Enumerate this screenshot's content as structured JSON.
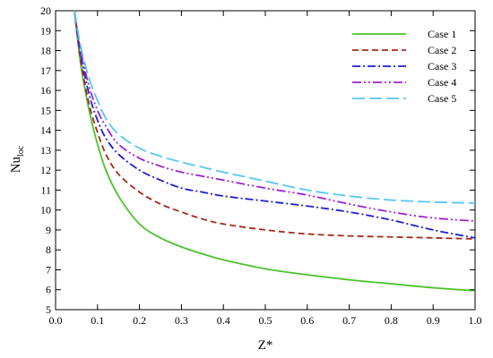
{
  "chart_data": {
    "type": "line",
    "xlabel": "Z*",
    "ylabel_main": "Nu",
    "ylabel_sub": "loc",
    "xlim": [
      0.0,
      1.0
    ],
    "ylim": [
      5,
      20
    ],
    "xticks": [
      0.0,
      0.1,
      0.2,
      0.3,
      0.4,
      0.5,
      0.6,
      0.7,
      0.8,
      0.9,
      1.0
    ],
    "xtick_labels": [
      "0.0",
      "0.1",
      "0.2",
      "0.3",
      "0.4",
      "0.5",
      "0.6",
      "0.7",
      "0.8",
      "0.9",
      "1.0"
    ],
    "yticks": [
      5,
      6,
      7,
      8,
      9,
      10,
      11,
      12,
      13,
      14,
      15,
      16,
      17,
      18,
      19,
      20
    ],
    "ytick_labels": [
      "5",
      "6",
      "7",
      "8",
      "9",
      "10",
      "11",
      "12",
      "13",
      "14",
      "15",
      "16",
      "17",
      "18",
      "19",
      "20"
    ],
    "grid": false,
    "legend_position": "top-right",
    "series": [
      {
        "name": "Case 1",
        "color": "#4CC22D",
        "dash": "solid",
        "x": [
          0.045,
          0.06,
          0.08,
          0.1,
          0.12,
          0.15,
          0.2,
          0.25,
          0.3,
          0.35,
          0.4,
          0.5,
          0.6,
          0.7,
          0.8,
          0.9,
          1.0
        ],
        "y": [
          20.0,
          17.3,
          15.0,
          13.3,
          12.0,
          10.7,
          9.3,
          8.6,
          8.15,
          7.8,
          7.5,
          7.05,
          6.75,
          6.5,
          6.3,
          6.1,
          5.95
        ]
      },
      {
        "name": "Case 2",
        "color": "#A52A1A",
        "dash": "dashed",
        "x": [
          0.045,
          0.06,
          0.08,
          0.1,
          0.12,
          0.15,
          0.2,
          0.25,
          0.3,
          0.35,
          0.4,
          0.5,
          0.6,
          0.7,
          0.8,
          0.9,
          1.0
        ],
        "y": [
          20.0,
          17.5,
          15.3,
          13.9,
          12.8,
          11.8,
          10.9,
          10.3,
          9.9,
          9.55,
          9.3,
          9.0,
          8.8,
          8.7,
          8.65,
          8.6,
          8.55
        ]
      },
      {
        "name": "Case 3",
        "color": "#1E1ECF",
        "dash": "dashdot",
        "x": [
          0.045,
          0.06,
          0.08,
          0.1,
          0.12,
          0.15,
          0.2,
          0.25,
          0.3,
          0.35,
          0.4,
          0.5,
          0.6,
          0.7,
          0.8,
          0.9,
          1.0
        ],
        "y": [
          20.0,
          17.8,
          15.8,
          14.5,
          13.6,
          12.8,
          12.0,
          11.5,
          11.1,
          10.9,
          10.7,
          10.45,
          10.2,
          9.9,
          9.5,
          9.0,
          8.6
        ]
      },
      {
        "name": "Case 4",
        "color": "#A020D0",
        "dash": "dashdotdot",
        "x": [
          0.045,
          0.06,
          0.08,
          0.1,
          0.12,
          0.15,
          0.2,
          0.25,
          0.3,
          0.35,
          0.4,
          0.5,
          0.6,
          0.7,
          0.8,
          0.9,
          1.0
        ],
        "y": [
          20.0,
          18.0,
          16.2,
          15.0,
          14.2,
          13.3,
          12.6,
          12.2,
          11.9,
          11.7,
          11.5,
          11.1,
          10.75,
          10.3,
          9.9,
          9.6,
          9.45
        ]
      },
      {
        "name": "Case 5",
        "color": "#55C8F0",
        "dash": "longdash",
        "x": [
          0.045,
          0.06,
          0.08,
          0.1,
          0.12,
          0.15,
          0.2,
          0.25,
          0.3,
          0.35,
          0.4,
          0.5,
          0.6,
          0.7,
          0.8,
          0.9,
          1.0
        ],
        "y": [
          20.0,
          18.2,
          16.6,
          15.5,
          14.6,
          13.8,
          13.1,
          12.7,
          12.4,
          12.15,
          11.9,
          11.45,
          11.0,
          10.7,
          10.5,
          10.4,
          10.35
        ]
      }
    ]
  }
}
